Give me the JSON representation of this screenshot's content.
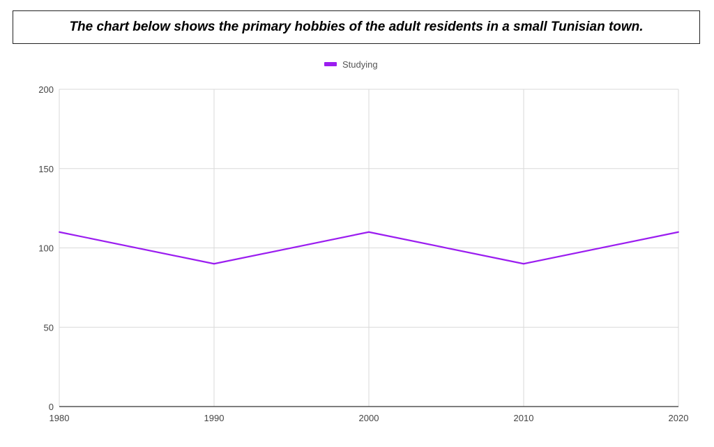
{
  "header": {
    "title": "The chart below shows the primary hobbies of the adult residents in a small Tunisian town."
  },
  "chart_data": {
    "type": "line",
    "title": "The chart below shows the primary hobbies of the adult residents in a small Tunisian town.",
    "xlabel": "",
    "ylabel": "",
    "x": [
      "1980",
      "1990",
      "2000",
      "2010",
      "2020"
    ],
    "ylim": [
      0,
      200
    ],
    "yticks": [
      "0",
      "50",
      "100",
      "150",
      "200"
    ],
    "grid": true,
    "legend_position": "top",
    "series": [
      {
        "name": "Studying",
        "color": "#9b1df0",
        "values": [
          110,
          90,
          110,
          90,
          110
        ]
      }
    ]
  }
}
